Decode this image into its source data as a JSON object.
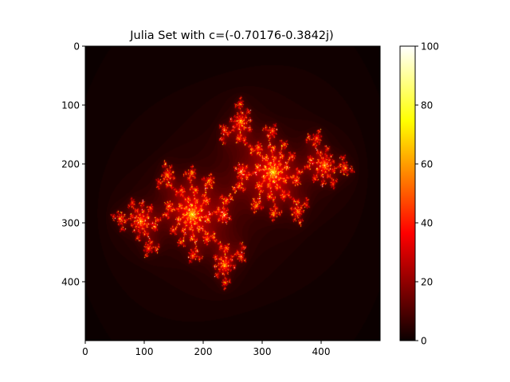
{
  "chart_data": {
    "type": "heatmap",
    "title": "Julia Set with c=(-0.70176-0.3842j)",
    "julia_c": {
      "re": -0.70176,
      "im": -0.3842
    },
    "xlim": [
      0,
      500
    ],
    "ylim": [
      500,
      0
    ],
    "x_ticks": [
      0,
      100,
      200,
      300,
      400
    ],
    "y_ticks": [
      0,
      100,
      200,
      300,
      400
    ],
    "colorbar": {
      "colormap": "hot",
      "vmin": 0,
      "vmax": 100,
      "ticks": [
        0,
        20,
        40,
        60,
        80,
        100
      ]
    },
    "max_iterations": 100,
    "plane_extent": {
      "re": [
        -1.8,
        1.8
      ],
      "im": [
        -1.35,
        1.35
      ]
    },
    "grid": false
  }
}
